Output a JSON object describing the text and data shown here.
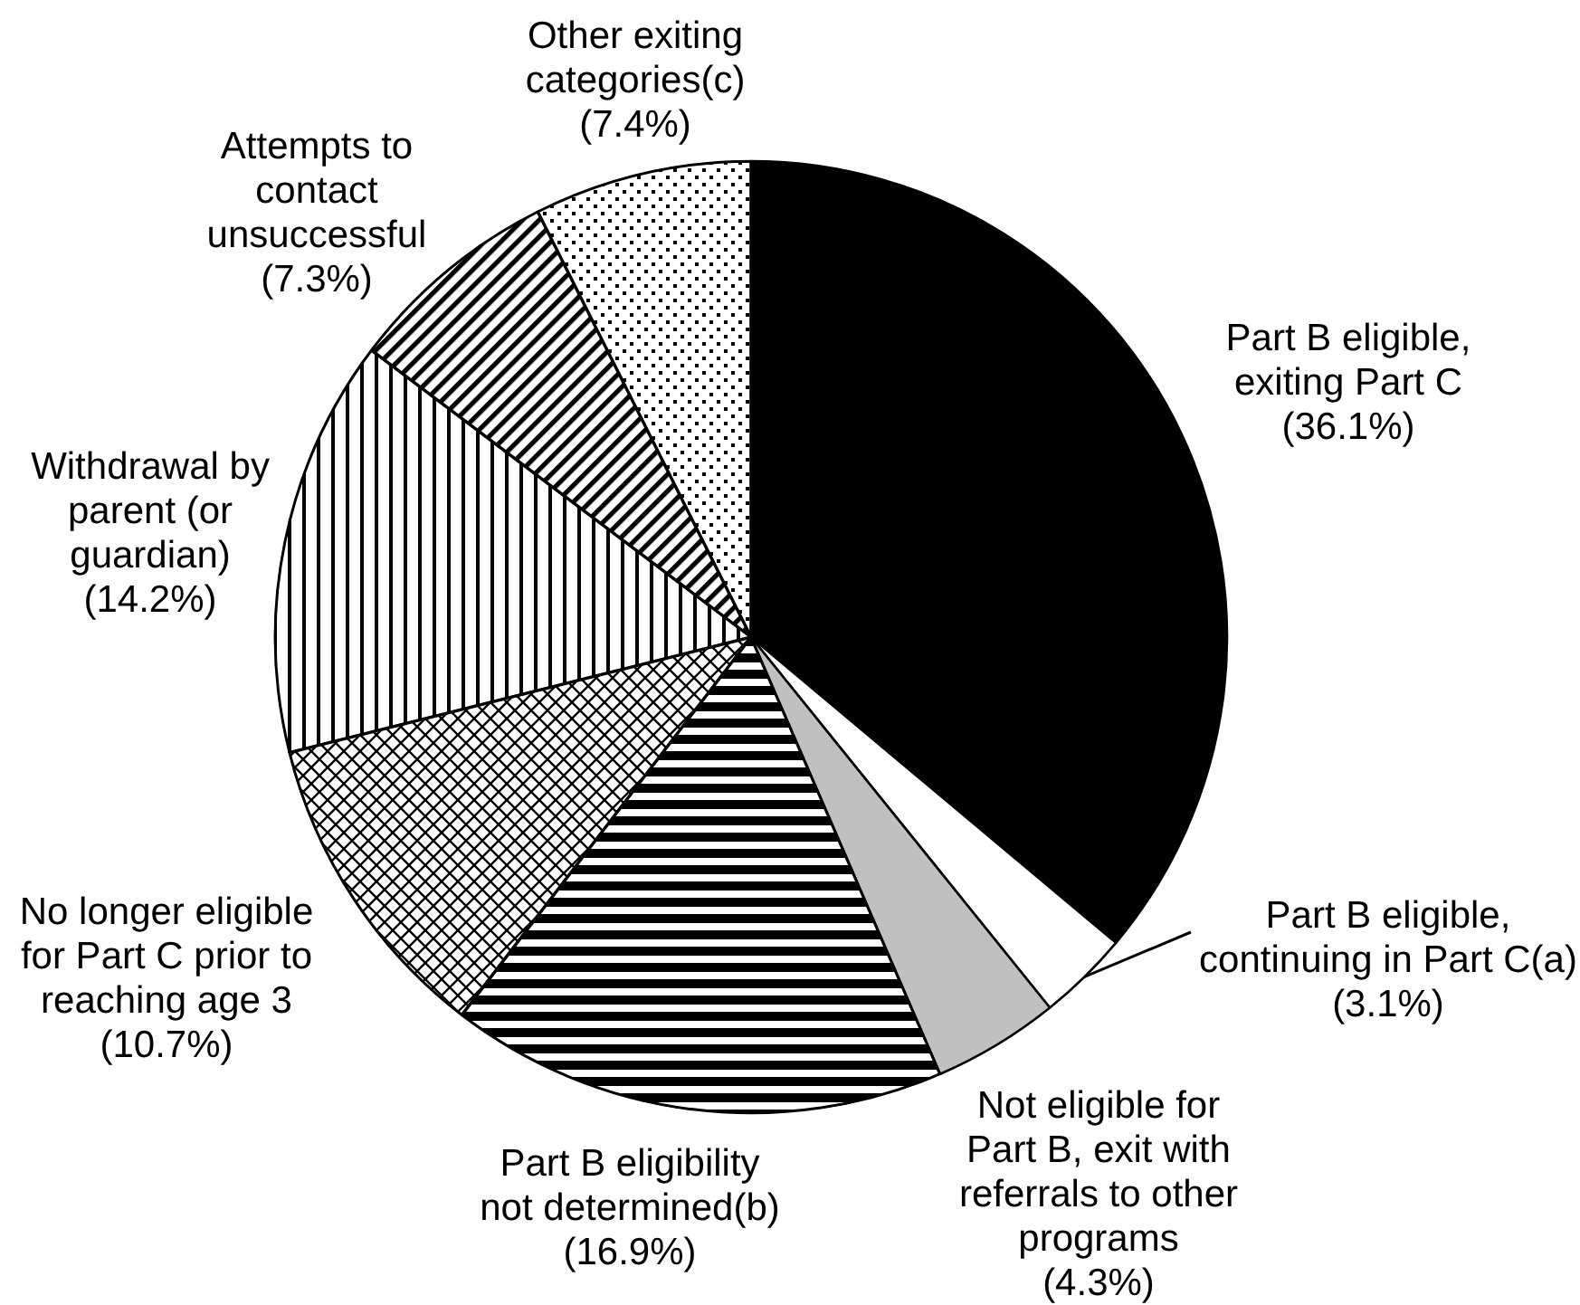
{
  "chart_data": {
    "type": "pie",
    "categories": [
      "Part B eligible, exiting Part C",
      "Part B eligible, continuing in Part C(a)",
      "Not eligible for Part B, exit with referrals to other programs",
      "Part B eligibility not determined(b)",
      "No longer eligible for Part C prior to reaching age 3",
      "Withdrawal by parent (or guardian)",
      "Attempts to contact unsuccessful",
      "Other exiting categories(c)"
    ],
    "values": [
      36.1,
      3.1,
      4.3,
      16.9,
      10.7,
      14.2,
      7.3,
      7.4
    ],
    "colors": [
      "#000000",
      "#ffffff",
      "#c0c0c0",
      "#000000",
      "#000000",
      "#000000",
      "#000000",
      "#000000"
    ],
    "value_labels": [
      "(36.1%)",
      "(3.1%)",
      "(4.3%)",
      "(16.9%)",
      "(10.7%)",
      "(14.2%)",
      "(7.3%)",
      "(7.4%)"
    ]
  }
}
